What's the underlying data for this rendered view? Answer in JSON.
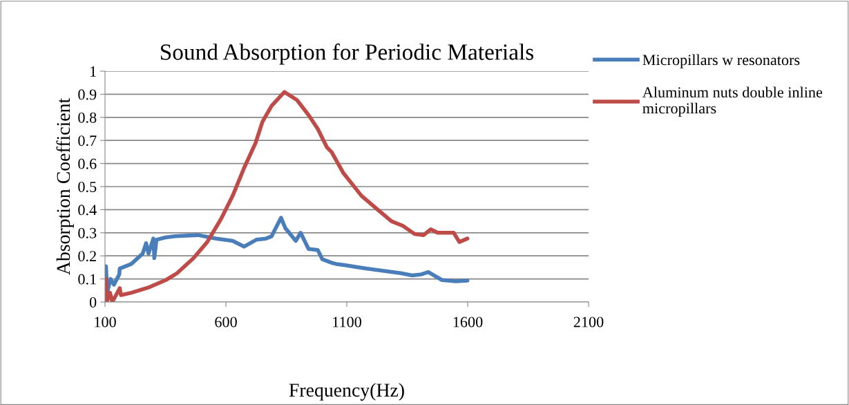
{
  "chart_data": {
    "type": "line",
    "title": "Sound Absorption for Periodic Materials",
    "xlabel": "Frequency(Hz)",
    "ylabel": "Absorption Coefficient",
    "xlim": [
      100,
      2100
    ],
    "xticks": [
      100,
      600,
      1100,
      1600,
      2100
    ],
    "ylim": [
      0,
      1
    ],
    "yticks": [
      0,
      0.1,
      0.2,
      0.3,
      0.4,
      0.5,
      0.6,
      0.7,
      0.8,
      0.9,
      1
    ],
    "grid": "y",
    "legend": "right",
    "marker": "none",
    "line_style": "solid",
    "series": [
      {
        "name": "Micropillars w resonators",
        "color": "#4a7ebb",
        "x": [
          100,
          104,
          109,
          123,
          137,
          159,
          161,
          209,
          256,
          270,
          280,
          300,
          304,
          313,
          351,
          390,
          485,
          560,
          628,
          675,
          726,
          766,
          789,
          828,
          846,
          889,
          909,
          942,
          980,
          999,
          1037,
          1056,
          1089,
          1180,
          1323,
          1371,
          1409,
          1437,
          1494,
          1551,
          1599
        ],
        "values": [
          0.1,
          0.155,
          0.04,
          0.1,
          0.075,
          0.12,
          0.145,
          0.165,
          0.21,
          0.255,
          0.21,
          0.275,
          0.19,
          0.27,
          0.28,
          0.285,
          0.29,
          0.275,
          0.265,
          0.24,
          0.27,
          0.275,
          0.285,
          0.365,
          0.32,
          0.265,
          0.3,
          0.23,
          0.225,
          0.185,
          0.17,
          0.165,
          0.16,
          0.145,
          0.125,
          0.115,
          0.12,
          0.13,
          0.095,
          0.09,
          0.093
        ]
      },
      {
        "name": "Aluminum nuts double inline micropillars",
        "color": "#be4b48",
        "x": [
          100,
          104,
          107,
          121,
          130,
          161,
          166,
          209,
          285,
          351,
          398,
          466,
          523,
          580,
          628,
          675,
          723,
          751,
          789,
          842,
          894,
          942,
          980,
          1018,
          1037,
          1085,
          1161,
          1228,
          1285,
          1332,
          1380,
          1418,
          1447,
          1476,
          1542,
          1566,
          1599
        ],
        "values": [
          0.0,
          0.1,
          0.0,
          0.04,
          0.0,
          0.06,
          0.03,
          0.04,
          0.065,
          0.095,
          0.125,
          0.19,
          0.26,
          0.36,
          0.46,
          0.58,
          0.69,
          0.78,
          0.85,
          0.91,
          0.875,
          0.81,
          0.75,
          0.67,
          0.65,
          0.56,
          0.46,
          0.4,
          0.35,
          0.33,
          0.295,
          0.29,
          0.315,
          0.3,
          0.3,
          0.26,
          0.275
        ]
      }
    ]
  }
}
